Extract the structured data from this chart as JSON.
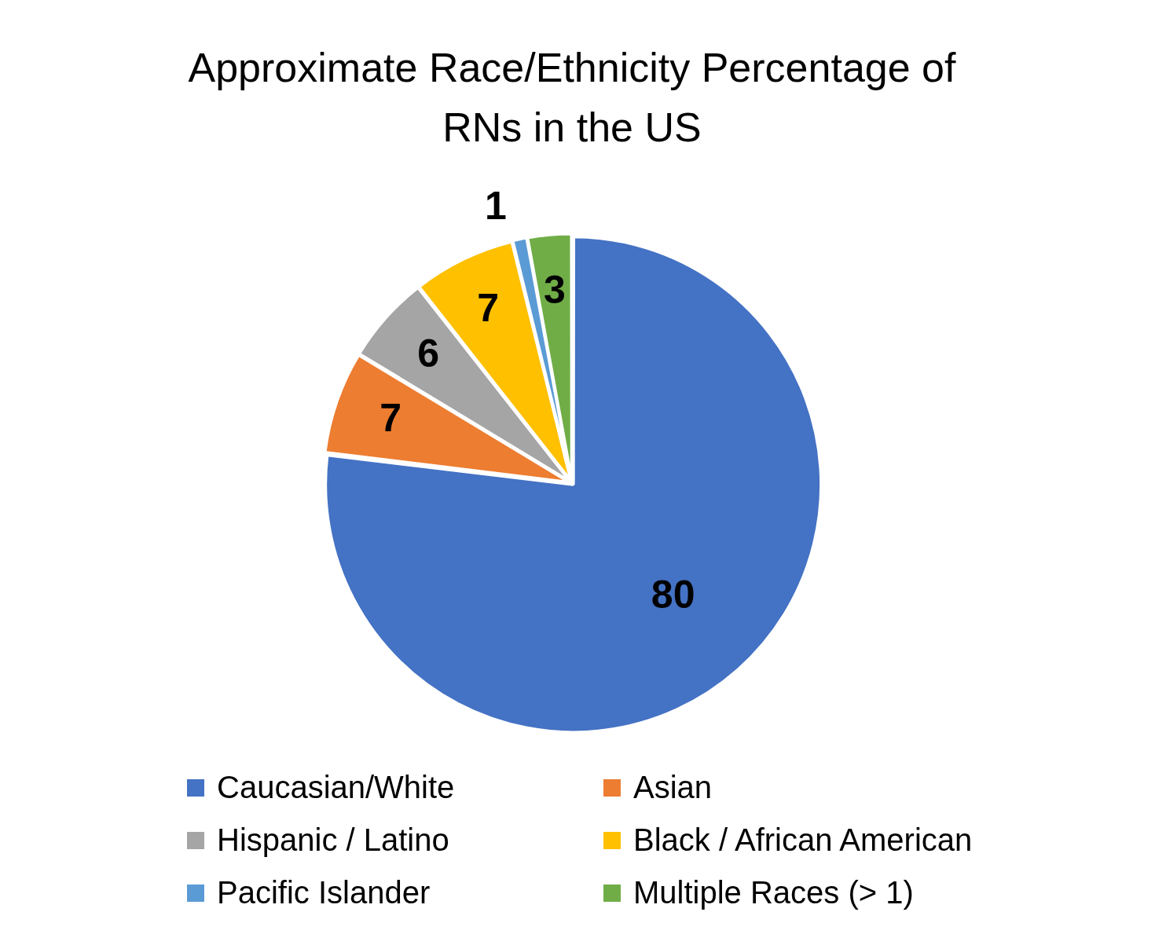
{
  "chart_data": {
    "type": "pie",
    "title": "Approximate Race/Ethnicity Percentage of RNs in the US",
    "categories": [
      "Caucasian/White",
      "Asian",
      "Hispanic / Latino",
      "Black / African American",
      "Pacific Islander",
      "Multiple Races (> 1)"
    ],
    "values": [
      80,
      7,
      6,
      7,
      1,
      3
    ],
    "colors": [
      "#4472c4",
      "#ed7d31",
      "#a5a5a5",
      "#ffc000",
      "#5b9bd5",
      "#70ad47"
    ],
    "data_labels": true,
    "legend": "bottom"
  }
}
